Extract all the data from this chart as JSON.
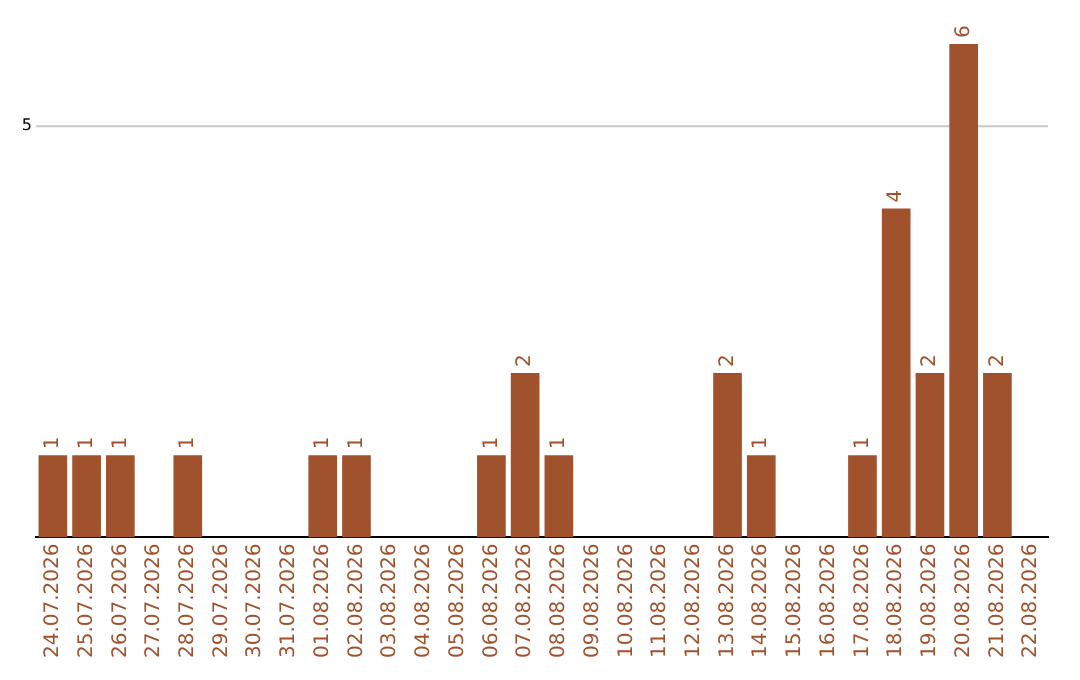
{
  "chart_data": {
    "type": "bar",
    "categories": [
      "24.07.2026",
      "25.07.2026",
      "26.07.2026",
      "27.07.2026",
      "28.07.2026",
      "29.07.2026",
      "30.07.2026",
      "31.07.2026",
      "01.08.2026",
      "02.08.2026",
      "03.08.2026",
      "04.08.2026",
      "05.08.2026",
      "06.08.2026",
      "07.08.2026",
      "08.08.2026",
      "09.08.2026",
      "10.08.2026",
      "11.08.2026",
      "12.08.2026",
      "13.08.2026",
      "14.08.2026",
      "15.08.2026",
      "16.08.2026",
      "17.08.2026",
      "18.08.2026",
      "19.08.2026",
      "20.08.2026",
      "21.08.2026",
      "22.08.2026"
    ],
    "values": [
      1,
      1,
      1,
      0,
      1,
      0,
      0,
      0,
      1,
      1,
      0,
      0,
      0,
      1,
      2,
      1,
      0,
      0,
      0,
      0,
      2,
      1,
      0,
      0,
      1,
      4,
      2,
      6,
      2,
      0
    ],
    "value_labels": [
      "1",
      "1",
      "1",
      null,
      "1",
      null,
      null,
      null,
      "1",
      "1",
      null,
      null,
      null,
      "1",
      "2",
      "1",
      null,
      null,
      null,
      null,
      "2",
      "1",
      null,
      null,
      "1",
      "4",
      "2",
      "6",
      "2",
      null
    ],
    "color": "#a0522d",
    "ref_lines": [
      {
        "axis": "y",
        "value": 5,
        "label": "5",
        "color": "#c8c8c8"
      }
    ]
  }
}
